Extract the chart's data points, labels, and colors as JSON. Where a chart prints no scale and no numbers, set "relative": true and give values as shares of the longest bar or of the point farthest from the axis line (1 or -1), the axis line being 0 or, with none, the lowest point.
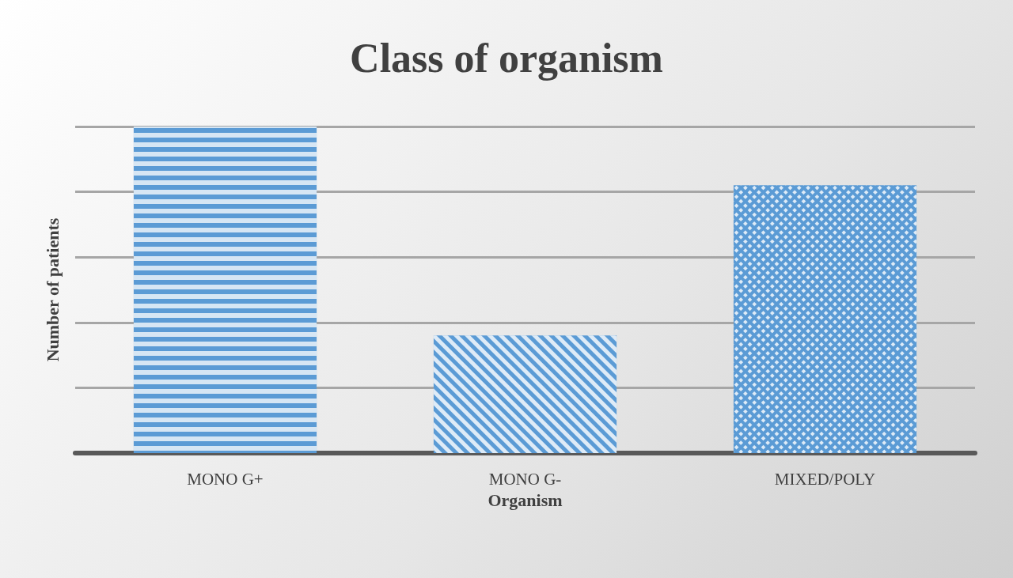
{
  "chart_data": {
    "type": "bar",
    "title": "Class of organism",
    "xlabel": "Organism",
    "ylabel": "Number of patients",
    "categories": [
      "MONO G+",
      "MONO G-",
      "MIXED/POLY"
    ],
    "values": [
      1,
      0.36,
      0.82
    ],
    "colors": [
      "#5b9bd5",
      "#5b9bd5",
      "#5b9bd5"
    ],
    "relative": true,
    "grid": true
  }
}
